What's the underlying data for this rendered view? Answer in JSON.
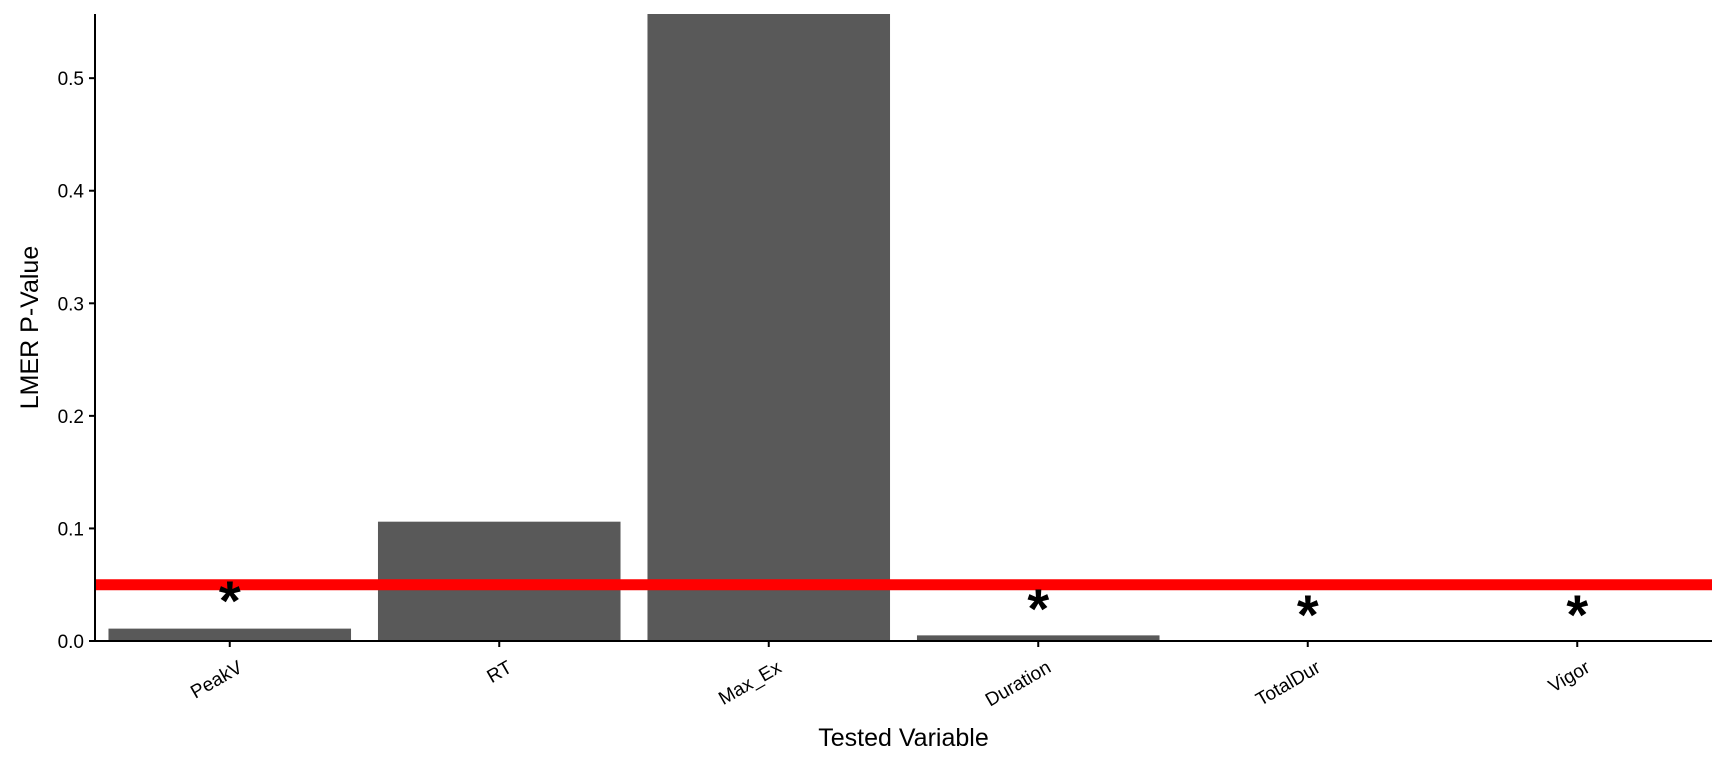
{
  "chart_data": {
    "type": "bar",
    "categories": [
      "PeakV",
      "RT",
      "Max_Ex",
      "Duration",
      "TotalDur",
      "Vigor"
    ],
    "values": [
      0.011,
      0.106,
      0.557,
      0.005,
      0.0,
      0.0
    ],
    "significance_marks": [
      "*",
      "",
      "",
      "*",
      "*",
      "*"
    ],
    "xlabel": "Tested Variable",
    "ylabel": "LMER P-Value",
    "y_ticks": [
      0.0,
      0.1,
      0.2,
      0.3,
      0.4,
      0.5
    ],
    "y_tick_labels": [
      "0.0",
      "0.1",
      "0.2",
      "0.3",
      "0.4",
      "0.5"
    ],
    "ylim": [
      0,
      0.557
    ],
    "threshold": 0.05,
    "grid": false,
    "legend": "none",
    "colors": {
      "bar": "#595959",
      "threshold_line": "#ff0000",
      "axis": "#000000"
    }
  }
}
